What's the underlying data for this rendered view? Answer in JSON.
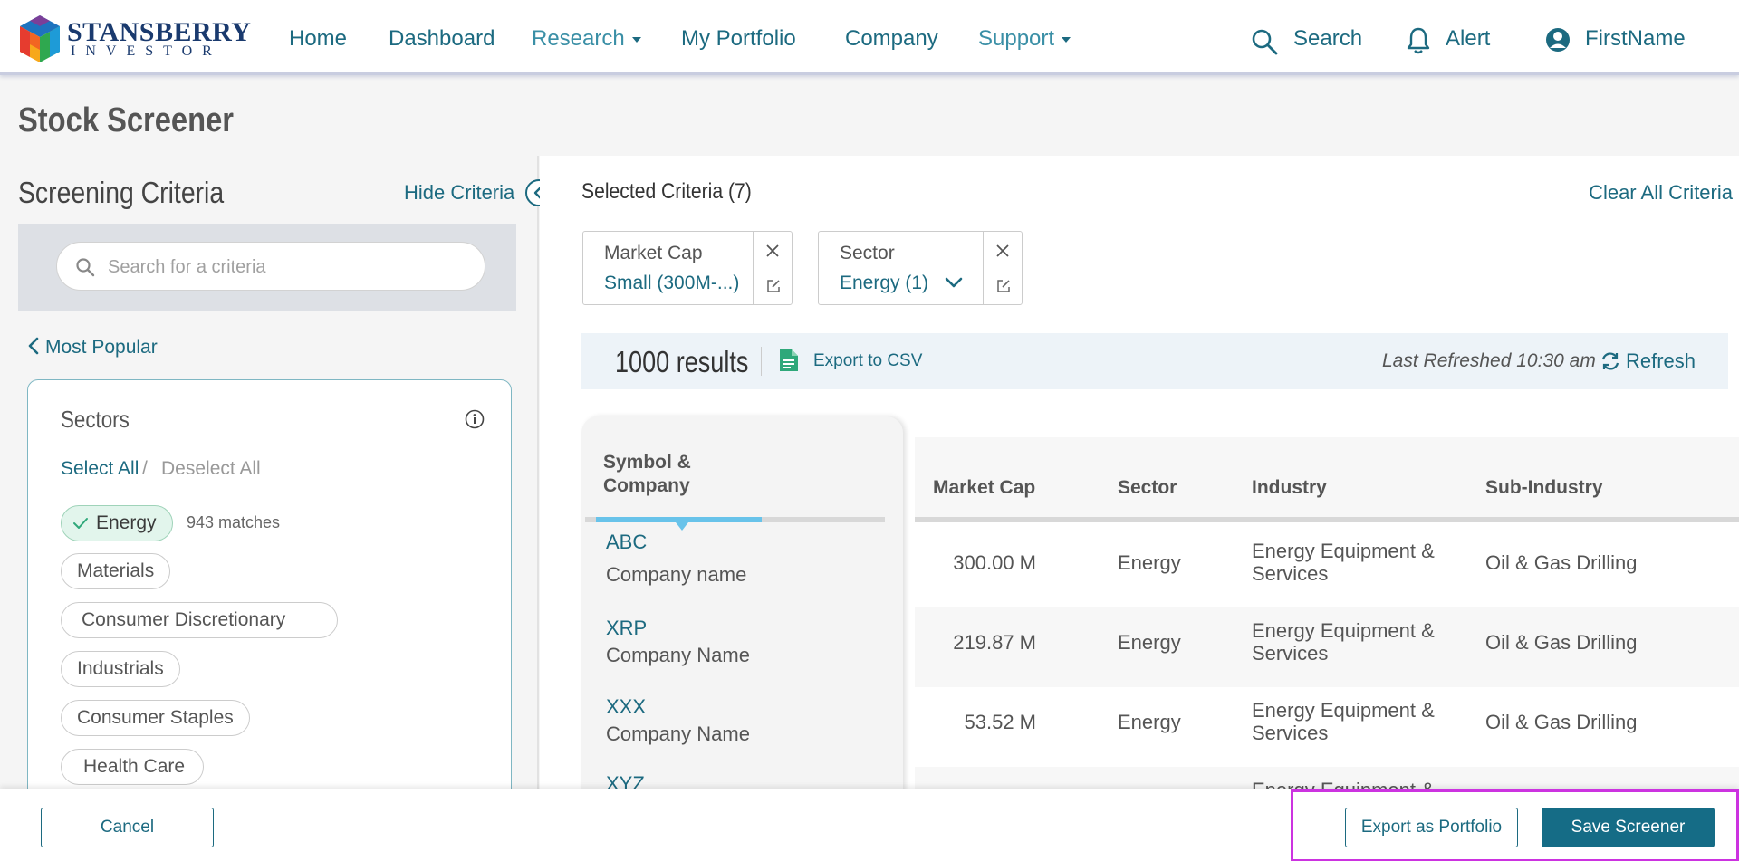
{
  "brand": {
    "name_line1": "STANSBERRY",
    "name_line2": "INVESTOR",
    "colors": [
      "#e63c2f",
      "#f7a81b",
      "#2fa84f",
      "#1e73be",
      "#7b3f98"
    ]
  },
  "nav": {
    "home": "Home",
    "dashboard": "Dashboard",
    "research": "Research",
    "portfolio": "My Portfolio",
    "company": "Company",
    "support": "Support",
    "search": "Search",
    "alert": "Alert",
    "user": "FirstName"
  },
  "page": {
    "title": "Stock Screener"
  },
  "criteria_panel": {
    "title": "Screening Criteria",
    "hide_label": "Hide Criteria",
    "search_placeholder": "Search for a criteria",
    "back_label": "Most Popular",
    "sectors": {
      "title": "Sectors",
      "select_all": "Select All",
      "separator": "/",
      "deselect_all": "Deselect All",
      "items": [
        {
          "label": "Energy",
          "selected": true,
          "matches": "943 matches"
        },
        {
          "label": "Materials"
        },
        {
          "label": "Consumer Discretionary"
        },
        {
          "label": "Industrials"
        },
        {
          "label": "Consumer Staples"
        },
        {
          "label": "Health Care"
        }
      ]
    }
  },
  "selected": {
    "title": "Selected Criteria (7)",
    "clear_all": "Clear All Criteria",
    "cards": [
      {
        "label": "Market Cap",
        "value": "Small (300M-...)"
      },
      {
        "label": "Sector",
        "value": "Energy (1)"
      }
    ]
  },
  "results": {
    "count": "1000 results",
    "export_csv": "Export to CSV",
    "last_refreshed": "Last Refreshed 10:30 am",
    "refresh": "Refresh"
  },
  "table": {
    "headers": {
      "symbol": "Symbol & Company",
      "market_cap": "Market Cap",
      "sector": "Sector",
      "industry": "Industry",
      "sub_industry": "Sub-Industry"
    },
    "rows": [
      {
        "symbol": "ABC",
        "company": "Company name",
        "market_cap": "300.00 M",
        "sector": "Energy",
        "industry_l1": "Energy Equipment &",
        "industry_l2": "Services",
        "sub_industry": "Oil & Gas Drilling"
      },
      {
        "symbol": "XRP",
        "company": "Company Name",
        "market_cap": "219.87 M",
        "sector": "Energy",
        "industry_l1": "Energy Equipment &",
        "industry_l2": "Services",
        "sub_industry": "Oil & Gas Drilling"
      },
      {
        "symbol": "XXX",
        "company": "Company Name",
        "market_cap": "53.52 M",
        "sector": "Energy",
        "industry_l1": "Energy Equipment &",
        "industry_l2": "Services",
        "sub_industry": "Oil & Gas Drilling"
      },
      {
        "symbol": "XYZ",
        "company": "",
        "market_cap": "",
        "sector": "",
        "industry_l1": "Energy Equipment &",
        "industry_l2": "",
        "sub_industry": ""
      }
    ]
  },
  "footer": {
    "cancel": "Cancel",
    "export_portfolio": "Export as Portfolio",
    "save": "Save Screener"
  }
}
